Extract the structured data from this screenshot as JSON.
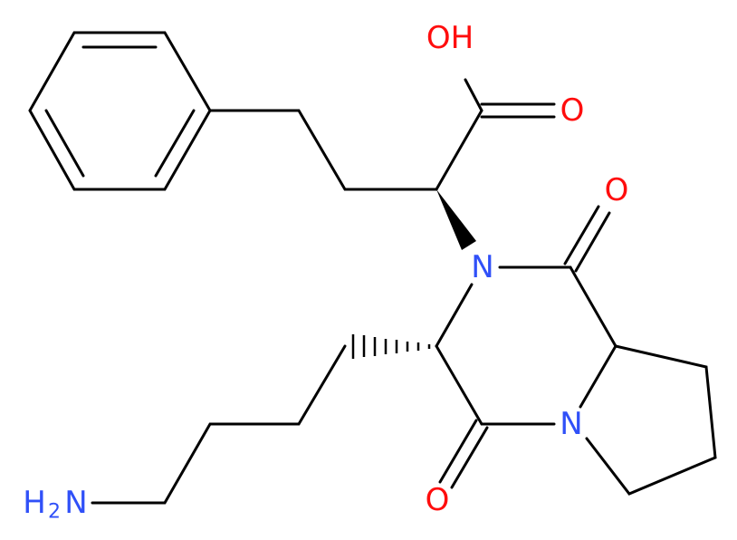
{
  "atoms": [
    {
      "label": "OH"
    },
    {
      "label": "O"
    },
    {
      "label": "O"
    },
    {
      "label": "N"
    },
    {
      "label": "N"
    },
    {
      "label": "O"
    }
  ],
  "amine": {
    "h": "H",
    "sub": "2",
    "n": "N"
  }
}
